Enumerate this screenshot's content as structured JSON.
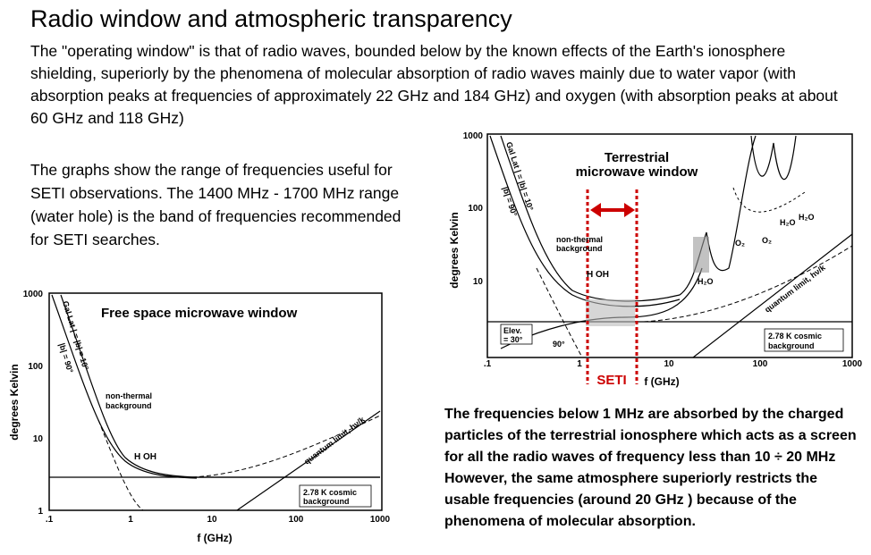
{
  "slide": {
    "title": "Radio window and atmospheric transparency",
    "paragraph1": "The \"operating window\" is that of radio waves, bounded below by the known effects of the Earth's ionosphere shielding, superiorly by the phenomena of molecular absorption of radio waves mainly due to water vapor (with absorption peaks at frequencies of approximately 22 GHz and 184 GHz) and oxygen (with absorption peaks at about 60 GHz and 118 GHz)",
    "paragraph2": "The graphs show the range of frequencies useful for SETI observations. The 1400 MHz - 1700 MHz range (water hole) is the band of frequencies recommended for SETI searches.",
    "paragraph3": "The frequencies below 1 MHz are absorbed by the charged particles of the terrestrial ionosphere which acts as a screen for all the radio waves of frequency less than 10 ÷ 20 MHz However, the same atmosphere superiorly restricts the usable frequencies (around 20 GHz ) because of the phenomena of molecular absorption."
  },
  "left_chart": {
    "title": "Free space microwave window",
    "ylabel": "degrees Kelvin",
    "xlabel": "f (GHz)",
    "y_ticks": [
      "1000",
      "100",
      "10",
      "1"
    ],
    "x_ticks": [
      ".1",
      "1",
      "10",
      "100",
      "1000"
    ],
    "gal_lat_label": "Gal Lat | = |b| = 10°",
    "b90_label": "|b| = 90°",
    "nonthermal_label": "non-thermal background",
    "hoh_label": "H OH",
    "quantum_label": "quantum limit, hν/k",
    "cosmic_label": "2.78 K cosmic background"
  },
  "right_chart": {
    "title": "Terrestrial microwave window",
    "ylabel": "degrees Kelvin",
    "xlabel": "f (GHz)",
    "y_ticks": [
      "1000",
      "100",
      "10",
      "1"
    ],
    "x_ticks": [
      ".1",
      "1",
      "10",
      "100",
      "1000"
    ],
    "gal_lat_label": "Gal Lat | = |b| = 10°",
    "b90_label": "|b| = 90°",
    "nonthermal_label": "non-thermal background",
    "hoh_label": "H OH",
    "quantum_label": "quantum limit, hν/k",
    "cosmic_label": "2.78 K cosmic background",
    "elev_label": "Elev. = 30°",
    "elev90_label": "90°",
    "seti_label": "SETI",
    "h2o_label": "H₂O",
    "o2_label": "O₂"
  },
  "colors": {
    "seti": "#cc0000",
    "curve": "#000000"
  }
}
